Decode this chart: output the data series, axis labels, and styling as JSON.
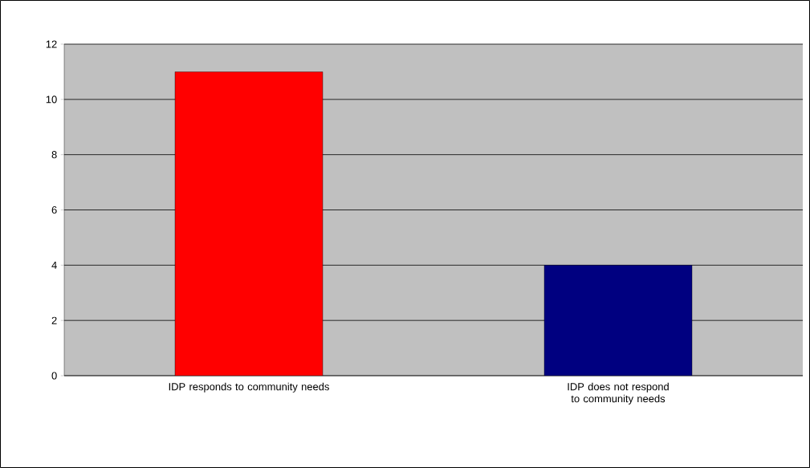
{
  "chart_data": {
    "type": "bar",
    "categories": [
      "IDP responds to community needs",
      "IDP does not respond to community needs"
    ],
    "values": [
      11,
      4
    ],
    "colors": [
      "#ff0000",
      "#000080"
    ],
    "ylim": [
      0,
      12
    ],
    "yticks": [
      0,
      2,
      4,
      6,
      8,
      10,
      12
    ],
    "grid": "y"
  }
}
